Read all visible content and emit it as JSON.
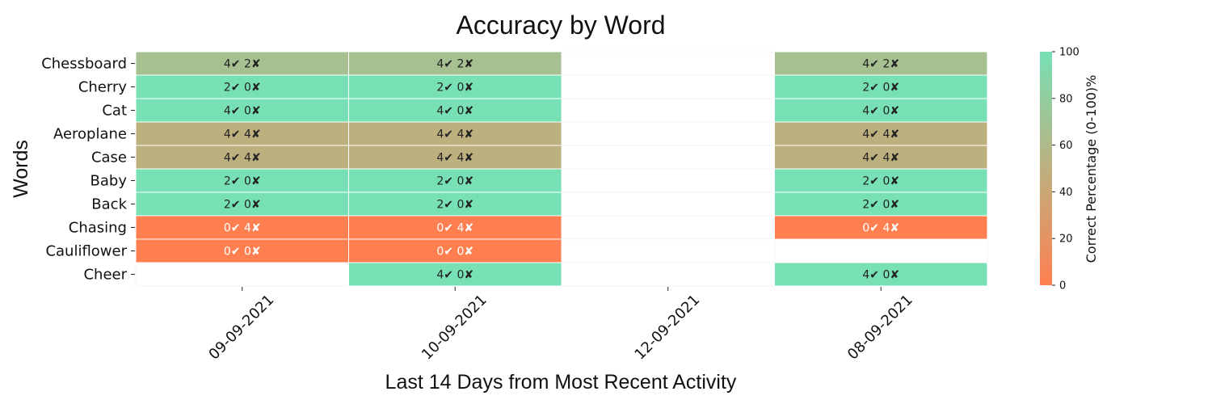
{
  "chart_data": {
    "type": "heatmap",
    "title": "Accuracy by Word",
    "xlabel": "Last 14 Days from Most Recent Activity",
    "ylabel": "Words",
    "x": [
      "09-09-2021",
      "10-09-2021",
      "12-09-2021",
      "08-09-2021"
    ],
    "y": [
      "Chessboard",
      "Cherry",
      "Cat",
      "Aeroplane",
      "Case",
      "Baby",
      "Back",
      "Chasing",
      "Cauliflower",
      "Cheer"
    ],
    "values": [
      [
        66.7,
        66.7,
        null,
        66.7
      ],
      [
        100,
        100,
        null,
        100
      ],
      [
        100,
        100,
        null,
        100
      ],
      [
        50,
        50,
        null,
        50
      ],
      [
        50,
        50,
        null,
        50
      ],
      [
        100,
        100,
        null,
        100
      ],
      [
        100,
        100,
        null,
        100
      ],
      [
        0,
        0,
        null,
        0
      ],
      [
        0,
        0,
        null,
        null
      ],
      [
        null,
        100,
        null,
        100
      ]
    ],
    "annotations": [
      [
        "4✔ 2✘",
        "4✔ 2✘",
        "",
        "4✔ 2✘"
      ],
      [
        "2✔ 0✘",
        "2✔ 0✘",
        "",
        "2✔ 0✘"
      ],
      [
        "4✔ 0✘",
        "4✔ 0✘",
        "",
        "4✔ 0✘"
      ],
      [
        "4✔ 4✘",
        "4✔ 4✘",
        "",
        "4✔ 4✘"
      ],
      [
        "4✔ 4✘",
        "4✔ 4✘",
        "",
        "4✔ 4✘"
      ],
      [
        "2✔ 0✘",
        "2✔ 0✘",
        "",
        "2✔ 0✘"
      ],
      [
        "2✔ 0✘",
        "2✔ 0✘",
        "",
        "2✔ 0✘"
      ],
      [
        "0✔ 4✘",
        "0✔ 4✘",
        "",
        "0✔ 4✘"
      ],
      [
        "0✔ 0✘",
        "0✔ 0✘",
        "",
        ""
      ],
      [
        "",
        "4✔ 0✘",
        "",
        "4✔ 0✘"
      ]
    ],
    "colorbar": {
      "label": "Correct Percentage (0-100)%",
      "range": [
        0,
        100
      ],
      "ticks": [
        0,
        20,
        40,
        60,
        80,
        100
      ],
      "low_color": "#ff7f50",
      "mid_color": "#bdb07f",
      "high_color": "#77e0b5"
    }
  }
}
